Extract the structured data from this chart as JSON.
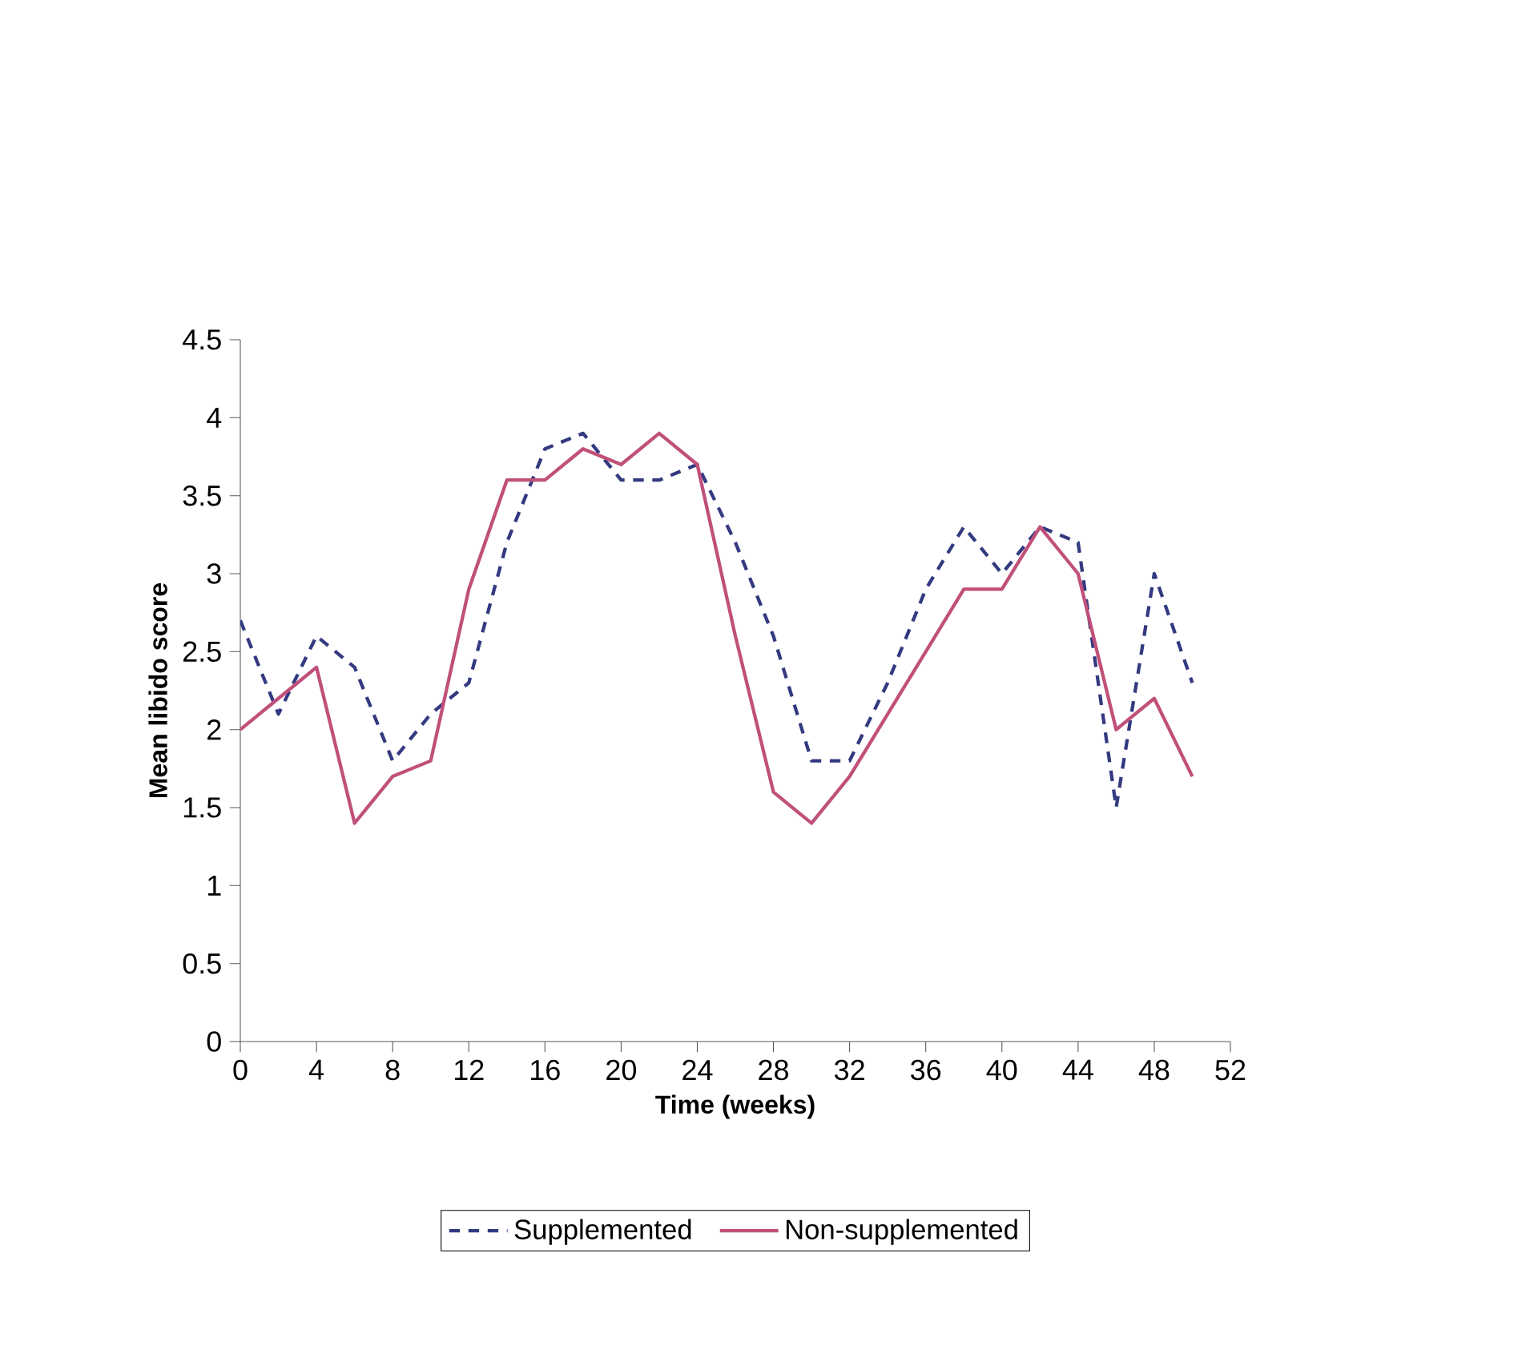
{
  "chart_data": {
    "type": "line",
    "xlabel": "Time (weeks)",
    "ylabel": "Mean libido score",
    "x": [
      0,
      2,
      4,
      6,
      8,
      10,
      12,
      14,
      16,
      18,
      20,
      22,
      24,
      26,
      28,
      30,
      32,
      34,
      36,
      38,
      40,
      42,
      44,
      46,
      48,
      50
    ],
    "series": [
      {
        "name": "Supplemented",
        "color": "#333a80",
        "line_style": "dashed",
        "values": [
          2.7,
          2.1,
          2.6,
          2.4,
          1.8,
          2.1,
          2.3,
          3.2,
          3.8,
          3.9,
          3.6,
          3.6,
          3.7,
          3.2,
          2.6,
          1.8,
          1.8,
          2.3,
          2.9,
          3.3,
          3.0,
          3.3,
          3.2,
          1.5,
          3.0,
          2.3
        ]
      },
      {
        "name": "Non-supplemented",
        "color": "#c0507a",
        "line_style": "solid",
        "values": [
          2.0,
          2.2,
          2.4,
          1.4,
          1.7,
          1.8,
          2.9,
          3.6,
          3.6,
          3.8,
          3.7,
          3.9,
          3.7,
          2.6,
          1.6,
          1.4,
          1.7,
          2.1,
          2.5,
          2.9,
          2.9,
          3.3,
          3.0,
          2.0,
          2.2,
          1.7
        ]
      }
    ],
    "xlim": [
      0,
      52
    ],
    "xticks": [
      0,
      4,
      8,
      12,
      16,
      20,
      24,
      28,
      32,
      36,
      40,
      44,
      48,
      52
    ],
    "ylim": [
      0,
      4.5
    ],
    "yticks": [
      0,
      0.5,
      1,
      1.5,
      2,
      2.5,
      3,
      3.5,
      4,
      4.5
    ],
    "grid": false,
    "legend": "bottom",
    "marker": "none"
  }
}
